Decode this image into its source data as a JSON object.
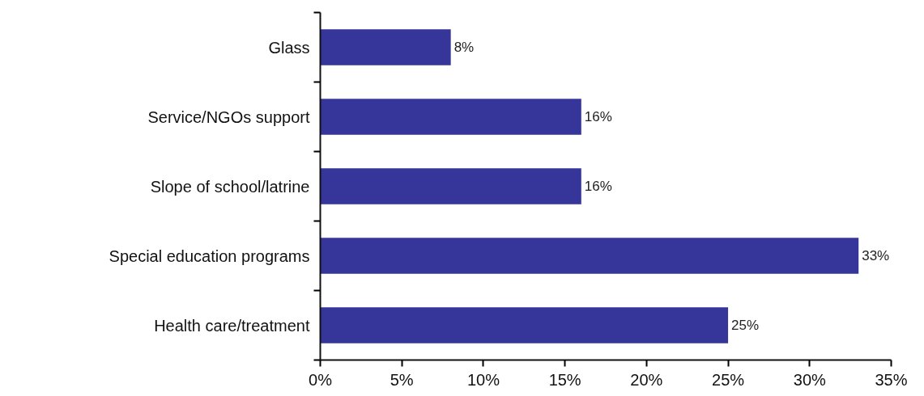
{
  "chart_data": {
    "type": "bar",
    "orientation": "horizontal",
    "categories": [
      "Glass",
      "Service/NGOs support",
      "Slope of school/latrine",
      "Special education programs",
      "Health care/treatment"
    ],
    "values": [
      8,
      16,
      16,
      33,
      25
    ],
    "value_labels": [
      "8%",
      "16%",
      "16%",
      "33%",
      "25%"
    ],
    "color": "#35359a",
    "xlim": [
      0,
      35
    ],
    "xticks": [
      {
        "value": 0,
        "label": "0%"
      },
      {
        "value": 5,
        "label": "5%"
      },
      {
        "value": 10,
        "label": "10%"
      },
      {
        "value": 15,
        "label": "15%"
      },
      {
        "value": 20,
        "label": "20%"
      },
      {
        "value": 25,
        "label": "25%"
      },
      {
        "value": 30,
        "label": "30%"
      },
      {
        "value": 35,
        "label": "35%"
      }
    ],
    "grid": false
  }
}
